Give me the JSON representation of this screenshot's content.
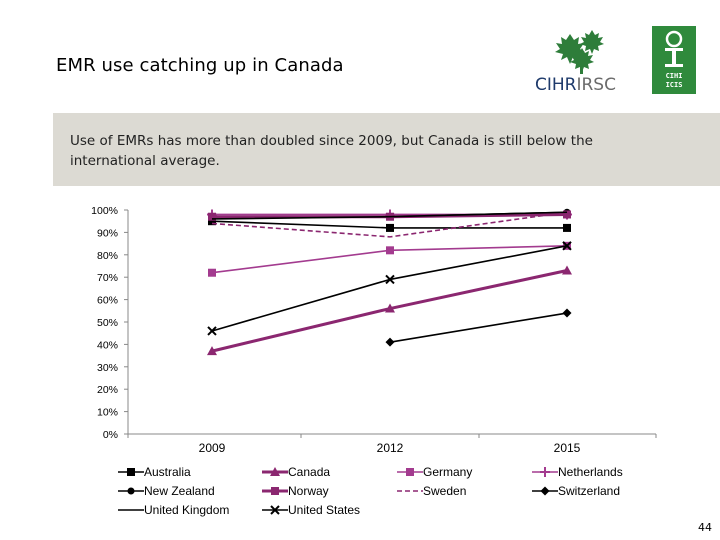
{
  "slide": {
    "title": "EMR use catching up in Canada",
    "subtitle": "Use of EMRs has more than doubled since 2009, but Canada is still below the international average.",
    "page_number": "44",
    "logos": {
      "cihr_text_a": "CIHR",
      "cihr_text_b": "IRSC",
      "cihi_lines": [
        "CIHI",
        "ICIS"
      ]
    }
  },
  "colors": {
    "banner": "#dcdad3",
    "canada": "#8b2770",
    "purple_light": "#a33b8f",
    "black": "#000000",
    "cihi_green": "#2f8a3c"
  },
  "chart_data": {
    "type": "line",
    "title": "",
    "categories": [
      "2009",
      "2012",
      "2015"
    ],
    "ylim": [
      0,
      100
    ],
    "yticks": [
      "0%",
      "10%",
      "20%",
      "30%",
      "40%",
      "50%",
      "60%",
      "70%",
      "80%",
      "90%",
      "100%"
    ],
    "legend_position": "bottom",
    "series": [
      {
        "name": "Australia",
        "values": [
          95,
          92,
          92
        ],
        "color": "#000000",
        "marker": "square",
        "dash": false
      },
      {
        "name": "Canada",
        "values": [
          37,
          56,
          73
        ],
        "color": "#8b2770",
        "marker": "triangle",
        "dash": false,
        "thick": true
      },
      {
        "name": "Germany",
        "values": [
          72,
          82,
          84
        ],
        "color": "#a33b8f",
        "marker": "square",
        "dash": false
      },
      {
        "name": "Netherlands",
        "values": [
          98,
          98,
          98
        ],
        "color": "#a33b8f",
        "marker": "plus",
        "dash": false
      },
      {
        "name": "New Zealand",
        "values": [
          97,
          97,
          99
        ],
        "color": "#000000",
        "marker": "circle",
        "dash": false
      },
      {
        "name": "Norway",
        "values": [
          97,
          97,
          98
        ],
        "color": "#8b2770",
        "marker": "square",
        "dash": false,
        "thick": true
      },
      {
        "name": "Sweden",
        "values": [
          94,
          88,
          99
        ],
        "color": "#8b2770",
        "marker": "none",
        "dash": true
      },
      {
        "name": "Switzerland",
        "values": [
          null,
          41,
          54
        ],
        "color": "#000000",
        "marker": "diamond",
        "dash": false
      },
      {
        "name": "United Kingdom",
        "values": [
          96,
          97,
          99
        ],
        "color": "#000000",
        "marker": "none",
        "dash": false
      },
      {
        "name": "United States",
        "values": [
          46,
          69,
          84
        ],
        "color": "#000000",
        "marker": "x",
        "dash": false
      }
    ]
  }
}
